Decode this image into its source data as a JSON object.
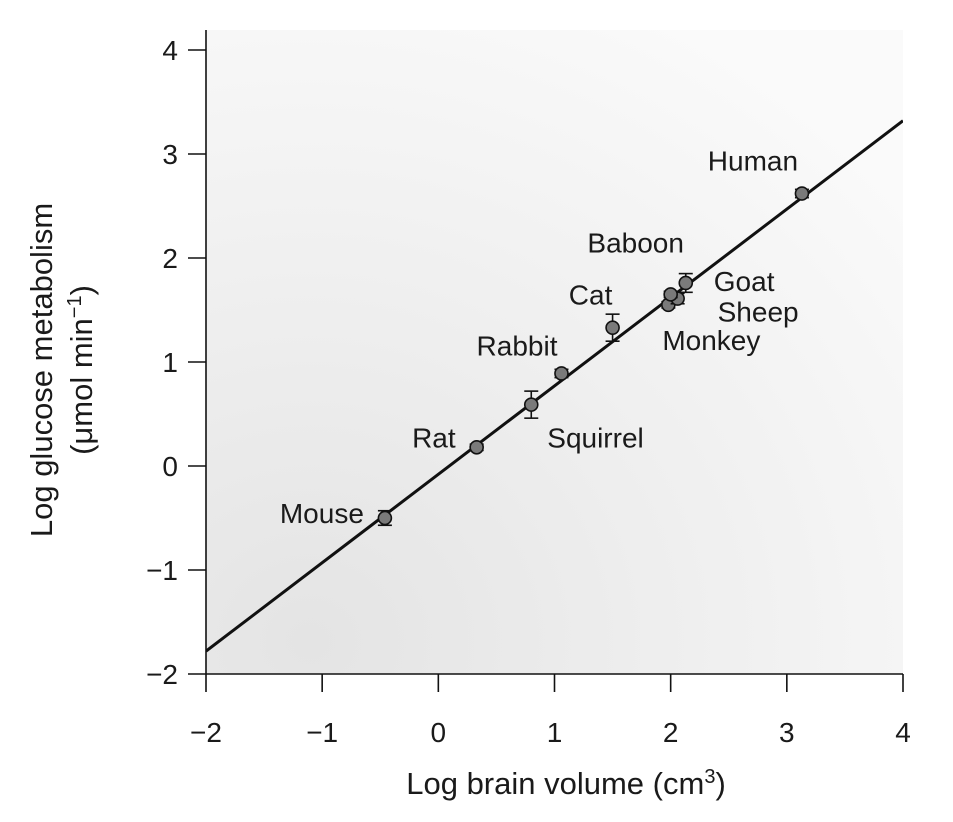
{
  "chart_data": {
    "type": "scatter",
    "xlabel": "Log brain volume (cm",
    "xlabel_sup": "3",
    "xlabel_end": ")",
    "ylabel_line1": "Log glucose metabolism",
    "ylabel_line2": "(μmol min",
    "ylabel_line2_sup": "−1",
    "ylabel_line2_end": ")",
    "xlim": [
      -2,
      4
    ],
    "ylim": [
      -2,
      4
    ],
    "x_ticks": [
      -2,
      -1,
      0,
      1,
      2,
      3,
      4
    ],
    "x_tick_labels": [
      "−2",
      "−1",
      "0",
      "1",
      "2",
      "3",
      "4"
    ],
    "y_ticks": [
      -2,
      -1,
      0,
      1,
      2,
      3,
      4
    ],
    "y_tick_labels": [
      "−2",
      "−1",
      "0",
      "1",
      "2",
      "3",
      "4"
    ],
    "grid": false,
    "background_color": "#eeeeee",
    "line_color": "#111111",
    "marker_color": "#7a7a7a",
    "points": [
      {
        "label": "Mouse",
        "x": -0.46,
        "y": -0.5,
        "err": 0.07,
        "label_side": "left"
      },
      {
        "label": "Rat",
        "x": 0.33,
        "y": 0.18,
        "err": 0.03,
        "label_side": "left"
      },
      {
        "label": "Squirrel",
        "x": 0.8,
        "y": 0.59,
        "err": 0.13,
        "label_side": "below-right"
      },
      {
        "label": "Rabbit",
        "x": 1.06,
        "y": 0.89,
        "err": 0.04,
        "label_side": "above-left"
      },
      {
        "label": "Cat",
        "x": 1.5,
        "y": 1.33,
        "err": 0.13,
        "label_side": "above"
      },
      {
        "label": "Monkey",
        "x": 1.98,
        "y": 1.55,
        "err": 0.03,
        "label_side": "below-right"
      },
      {
        "label": "Sheep",
        "x": 2.06,
        "y": 1.61,
        "err": 0.05,
        "label_side": "right"
      },
      {
        "label": "Goat",
        "x": 2.13,
        "y": 1.76,
        "err": 0.09,
        "label_side": "right"
      },
      {
        "label": "Baboon",
        "x": 2.0,
        "y": 1.65,
        "err": 0.03,
        "label_side": "above"
      },
      {
        "label": "Human",
        "x": 3.13,
        "y": 2.62,
        "err": 0.04,
        "label_side": "above"
      }
    ],
    "fit_line": {
      "x": [
        -2,
        4
      ],
      "y": [
        -1.78,
        3.32
      ]
    }
  }
}
